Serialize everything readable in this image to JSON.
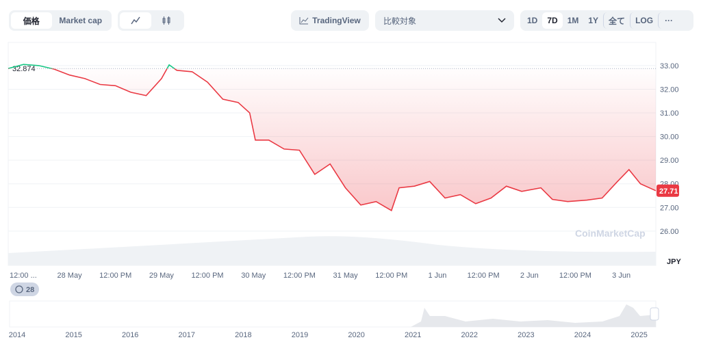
{
  "toolbar": {
    "price": "価格",
    "market_cap": "Market cap",
    "tradingview": "TradingView",
    "compare": "比較対象",
    "ranges": [
      "1D",
      "7D",
      "1M",
      "1Y",
      "全て",
      "LOG"
    ],
    "more": "···"
  },
  "badge": "28",
  "chart_data": {
    "type": "line",
    "x": [
      -4,
      0,
      4,
      8,
      12,
      16,
      20,
      24,
      28,
      32,
      36,
      38,
      40,
      44,
      48,
      52,
      56,
      59,
      60.5,
      64,
      68,
      72,
      76,
      80,
      84,
      88,
      92,
      96,
      98,
      102,
      106,
      110,
      114,
      118,
      122,
      126,
      130,
      135,
      138,
      142,
      147,
      151,
      155,
      158,
      161,
      165
    ],
    "series": [
      {
        "name": "JPY",
        "color": "#ea3943",
        "values": [
          32.874,
          33.05,
          33.0,
          32.85,
          32.6,
          32.45,
          32.2,
          32.15,
          31.87,
          31.73,
          32.45,
          33.03,
          32.8,
          32.74,
          32.3,
          31.58,
          31.44,
          31.0,
          29.85,
          29.85,
          29.47,
          29.42,
          28.4,
          28.84,
          27.83,
          27.1,
          27.25,
          26.87,
          27.83,
          27.9,
          28.1,
          27.4,
          27.54,
          27.16,
          27.4,
          27.9,
          27.68,
          27.83,
          27.34,
          27.25,
          27.31,
          27.4,
          28.1,
          28.6,
          28.0,
          27.71
        ]
      }
    ],
    "up_color": "#16c784",
    "baseline": 32.874,
    "current_price": 27.71,
    "currency": "JPY",
    "xlim": [
      -4,
      165
    ],
    "xticks": [
      {
        "value": 0,
        "label": "12:00 ..."
      },
      {
        "value": 12,
        "label": "28 May"
      },
      {
        "value": 24,
        "label": "12:00 PM"
      },
      {
        "value": 36,
        "label": "29 May"
      },
      {
        "value": 48,
        "label": "12:00 PM"
      },
      {
        "value": 60,
        "label": "30 May"
      },
      {
        "value": 72,
        "label": "12:00 PM"
      },
      {
        "value": 84,
        "label": "31 May"
      },
      {
        "value": 96,
        "label": "12:00 PM"
      },
      {
        "value": 108,
        "label": "1 Jun"
      },
      {
        "value": 120,
        "label": "12:00 PM"
      },
      {
        "value": 132,
        "label": "2 Jun"
      },
      {
        "value": 144,
        "label": "12:00 PM"
      },
      {
        "value": 156,
        "label": "3 Jun"
      }
    ],
    "ylim": [
      24.55,
      33.98
    ],
    "yticks": [
      {
        "value": 26,
        "label": "26.00"
      },
      {
        "value": 27,
        "label": "27.00"
      },
      {
        "value": 28,
        "label": "28.00"
      },
      {
        "value": 29,
        "label": "29.00"
      },
      {
        "value": 30,
        "label": "30.00"
      },
      {
        "value": 31,
        "label": "31.00"
      },
      {
        "value": 32,
        "label": "32.00"
      },
      {
        "value": 33,
        "label": "33.00"
      }
    ],
    "grid": true,
    "watermark": "CoinMarketCap",
    "navigator_years": [
      "2014",
      "2015",
      "2016",
      "2017",
      "2018",
      "2019",
      "2020",
      "2021",
      "2022",
      "2023",
      "2024",
      "2025"
    ]
  }
}
